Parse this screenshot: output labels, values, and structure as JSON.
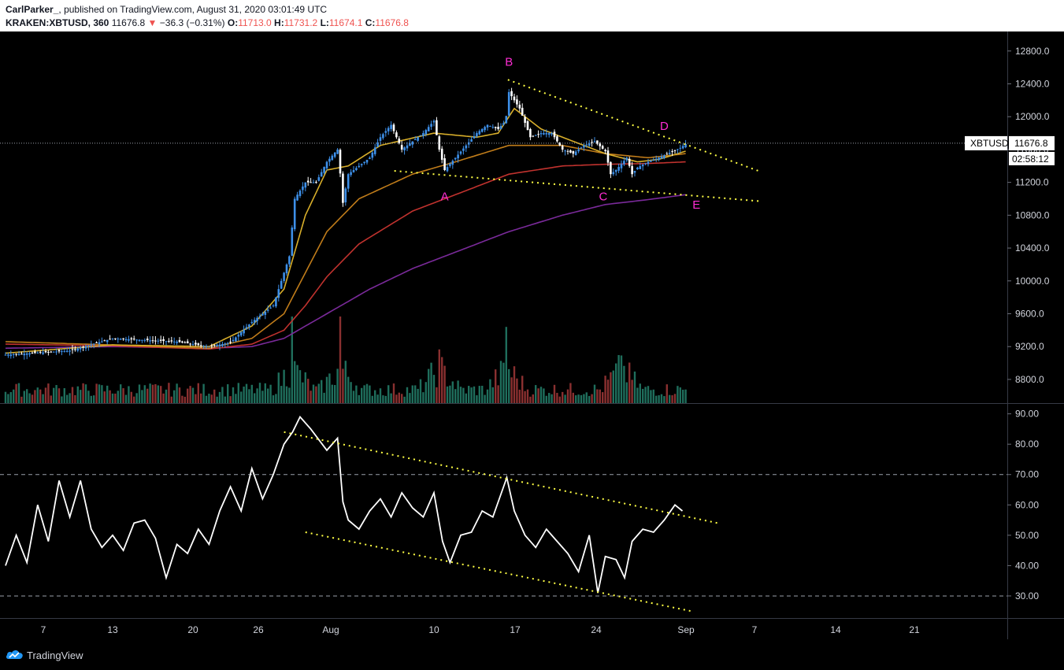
{
  "header": {
    "author": "CarlParker_",
    "published": "published on TradingView.com, August 31, 2020 03:01:49 UTC",
    "symbol": "KRAKEN:XBTUSD, 360",
    "last": "11676.8",
    "change_arrow": "▼",
    "change": "−36.3 (−0.31%)",
    "o_label": "O:",
    "o_value": "11713.0",
    "h_label": "H:",
    "h_value": "11731.2",
    "l_label": "L:",
    "l_value": "11674.1",
    "c_label": "C:",
    "c_value": "11676.8"
  },
  "footer": {
    "brand": "TradingView"
  },
  "chart_data": [
    {
      "type": "candlestick",
      "symbol_label": "XBTUSD",
      "last_price": 11676.8,
      "last_price_label": "11676.8",
      "countdown": "02:58:12",
      "y_ticks": [
        "12800.0",
        "12400.0",
        "12000.0",
        "11600.0",
        "11200.0",
        "10800.0",
        "10400.0",
        "10000.0",
        "9600.0",
        "9200.0",
        "8800.0"
      ],
      "ylim": [
        8550,
        12980
      ],
      "x_ticks": [
        "7",
        "13",
        "20",
        "26",
        "Aug",
        "10",
        "17",
        "24",
        "Sep",
        "7",
        "14",
        "21"
      ],
      "price_path": [
        [
          0,
          9100
        ],
        [
          6,
          9150
        ],
        [
          10,
          9300
        ],
        [
          13,
          9280
        ],
        [
          16,
          9260
        ],
        [
          19,
          9200
        ],
        [
          21,
          9250
        ],
        [
          23,
          9500
        ],
        [
          25,
          9700
        ],
        [
          26.5,
          10300
        ],
        [
          27,
          11000
        ],
        [
          28,
          11200
        ],
        [
          29,
          11200
        ],
        [
          30,
          11450
        ],
        [
          31,
          11600
        ],
        [
          31.3,
          11250
        ],
        [
          31.5,
          10950
        ],
        [
          32,
          11300
        ],
        [
          33,
          11400
        ],
        [
          34,
          11500
        ],
        [
          35,
          11750
        ],
        [
          36,
          11900
        ],
        [
          37,
          11600
        ],
        [
          38,
          11700
        ],
        [
          39,
          11800
        ],
        [
          40,
          11950
        ],
        [
          40.5,
          11600
        ],
        [
          41,
          11350
        ],
        [
          42,
          11500
        ],
        [
          43,
          11650
        ],
        [
          44,
          11800
        ],
        [
          45,
          11900
        ],
        [
          46,
          11850
        ],
        [
          46.7,
          11950
        ],
        [
          47,
          12300
        ],
        [
          48,
          12100
        ],
        [
          49,
          11750
        ],
        [
          50,
          11800
        ],
        [
          51,
          11800
        ],
        [
          52,
          11600
        ],
        [
          53,
          11550
        ],
        [
          54,
          11650
        ],
        [
          55,
          11700
        ],
        [
          56,
          11580
        ],
        [
          56.5,
          11300
        ],
        [
          57,
          11350
        ],
        [
          58,
          11500
        ],
        [
          58.5,
          11300
        ],
        [
          59,
          11380
        ],
        [
          60,
          11450
        ],
        [
          61,
          11500
        ],
        [
          62,
          11560
        ],
        [
          63,
          11620
        ],
        [
          63.6,
          11677
        ]
      ],
      "ema_fast": [
        [
          0,
          9120
        ],
        [
          10,
          9220
        ],
        [
          19,
          9200
        ],
        [
          23,
          9450
        ],
        [
          26,
          9900
        ],
        [
          28,
          10800
        ],
        [
          30,
          11350
        ],
        [
          32,
          11400
        ],
        [
          35,
          11650
        ],
        [
          40,
          11800
        ],
        [
          44,
          11750
        ],
        [
          46,
          11800
        ],
        [
          47.5,
          12100
        ],
        [
          50,
          11850
        ],
        [
          53,
          11700
        ],
        [
          56,
          11550
        ],
        [
          59,
          11450
        ],
        [
          61,
          11480
        ],
        [
          63.5,
          11580
        ]
      ],
      "ema_mid": [
        [
          0,
          9260
        ],
        [
          10,
          9220
        ],
        [
          19,
          9180
        ],
        [
          23,
          9300
        ],
        [
          26,
          9600
        ],
        [
          28,
          10100
        ],
        [
          30,
          10600
        ],
        [
          33,
          11000
        ],
        [
          38,
          11300
        ],
        [
          42,
          11450
        ],
        [
          47,
          11650
        ],
        [
          52,
          11650
        ],
        [
          56,
          11550
        ],
        [
          60,
          11500
        ],
        [
          63.5,
          11550
        ]
      ],
      "ema_slow": [
        [
          0,
          9230
        ],
        [
          10,
          9210
        ],
        [
          19,
          9170
        ],
        [
          23,
          9230
        ],
        [
          26,
          9400
        ],
        [
          28,
          9700
        ],
        [
          30,
          10050
        ],
        [
          33,
          10450
        ],
        [
          38,
          10850
        ],
        [
          42,
          11050
        ],
        [
          47,
          11300
        ],
        [
          52,
          11400
        ],
        [
          56,
          11420
        ],
        [
          60,
          11430
        ],
        [
          63.5,
          11450
        ]
      ],
      "ema_long": [
        [
          0,
          9180
        ],
        [
          10,
          9200
        ],
        [
          19,
          9180
        ],
        [
          23,
          9200
        ],
        [
          26,
          9300
        ],
        [
          30,
          9600
        ],
        [
          34,
          9900
        ],
        [
          38,
          10150
        ],
        [
          42,
          10350
        ],
        [
          47,
          10600
        ],
        [
          52,
          10800
        ],
        [
          56,
          10930
        ],
        [
          60,
          10990
        ],
        [
          63.5,
          11050
        ]
      ],
      "volume_peaks": [
        [
          26.8,
          1
        ],
        [
          31.3,
          1
        ],
        [
          46.8,
          0.88
        ],
        [
          40.5,
          0.62
        ],
        [
          57.5,
          0.55
        ]
      ],
      "trendlines": [
        {
          "from": [
            46.9,
            12450
          ],
          "to": [
            70.5,
            11330
          ]
        },
        {
          "from": [
            36.3,
            11340
          ],
          "to": [
            70.5,
            10970
          ]
        }
      ],
      "labels": [
        {
          "text": "A",
          "x": 41,
          "price": 10980
        },
        {
          "text": "B",
          "x": 47,
          "price": 12620
        },
        {
          "text": "C",
          "x": 55.8,
          "price": 10980
        },
        {
          "text": "D",
          "x": 61.5,
          "price": 11840
        },
        {
          "text": "E",
          "x": 64.5,
          "price": 10880
        }
      ],
      "colors": {
        "up": "#3d8fe8",
        "down": "#ffffff",
        "ema_fast": "#d8ae2a",
        "ema_mid": "#c07c1a",
        "ema_slow": "#c0322e",
        "ema_long": "#7a2a9a",
        "vol_up": "#1f6e5c",
        "vol_down": "#8a3030",
        "trend": "#ffff44",
        "label": "#ff2dd4"
      }
    },
    {
      "type": "line",
      "name": "oscillator",
      "y_ticks": [
        "90.00",
        "80.00",
        "70.00",
        "60.00",
        "50.00",
        "40.00",
        "30.00"
      ],
      "ylim": [
        23.5,
        92.5
      ],
      "levels": [
        70,
        30
      ],
      "values": [
        [
          0,
          40
        ],
        [
          1,
          50
        ],
        [
          2,
          41
        ],
        [
          3,
          60
        ],
        [
          4,
          48
        ],
        [
          5,
          68
        ],
        [
          6,
          56
        ],
        [
          7,
          68
        ],
        [
          8,
          52
        ],
        [
          9,
          46
        ],
        [
          10,
          50
        ],
        [
          11,
          45
        ],
        [
          12,
          54
        ],
        [
          13,
          55
        ],
        [
          14,
          49
        ],
        [
          15,
          36
        ],
        [
          16,
          47
        ],
        [
          17,
          44
        ],
        [
          18,
          52
        ],
        [
          19,
          47
        ],
        [
          20,
          58
        ],
        [
          21,
          66
        ],
        [
          22,
          58
        ],
        [
          23,
          72
        ],
        [
          24,
          62
        ],
        [
          25,
          70
        ],
        [
          26,
          80
        ],
        [
          26.8,
          84
        ],
        [
          27.5,
          89
        ],
        [
          28.5,
          85
        ],
        [
          30,
          78
        ],
        [
          31,
          82
        ],
        [
          31.5,
          61
        ],
        [
          32,
          55
        ],
        [
          33,
          52
        ],
        [
          34,
          58
        ],
        [
          35,
          62
        ],
        [
          36,
          56
        ],
        [
          37,
          64
        ],
        [
          38,
          59
        ],
        [
          39,
          56
        ],
        [
          40,
          64
        ],
        [
          40.8,
          48
        ],
        [
          41.5,
          41
        ],
        [
          42.5,
          50
        ],
        [
          43.5,
          51
        ],
        [
          44.5,
          58
        ],
        [
          45.5,
          56
        ],
        [
          46.8,
          69
        ],
        [
          47.5,
          58
        ],
        [
          48.5,
          50
        ],
        [
          49.5,
          46
        ],
        [
          50.5,
          52
        ],
        [
          51.5,
          48
        ],
        [
          52.5,
          44
        ],
        [
          53.5,
          38
        ],
        [
          54.5,
          50
        ],
        [
          55.3,
          31
        ],
        [
          56,
          43
        ],
        [
          57,
          42
        ],
        [
          57.8,
          36
        ],
        [
          58.5,
          48
        ],
        [
          59.5,
          52
        ],
        [
          60.5,
          51
        ],
        [
          61.5,
          55
        ],
        [
          62.5,
          60
        ],
        [
          63.2,
          58
        ]
      ],
      "trendlines": [
        {
          "from": [
            26,
            84
          ],
          "to": [
            66.5,
            54
          ]
        },
        {
          "from": [
            28,
            51
          ],
          "to": [
            64,
            25
          ]
        }
      ],
      "colors": {
        "line": "#ffffff",
        "trend": "#ffff44",
        "level": "#9aa0aa"
      }
    }
  ]
}
